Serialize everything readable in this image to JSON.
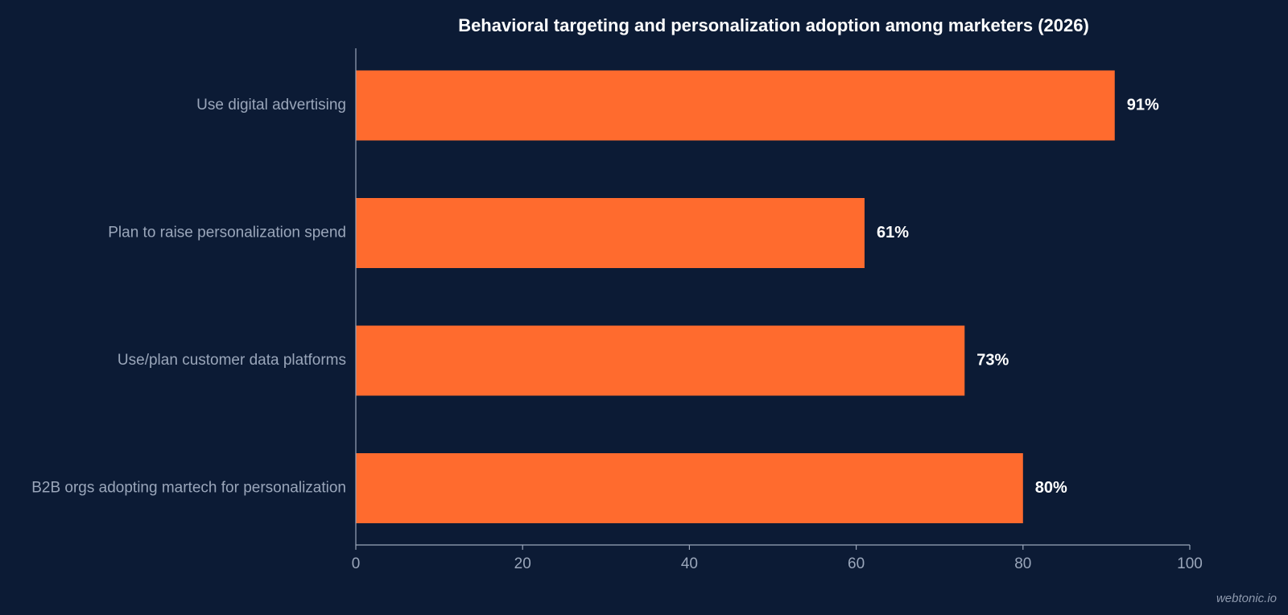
{
  "chart_data": {
    "type": "bar",
    "orientation": "horizontal",
    "title": "Behavioral targeting and personalization adoption among marketers (2026)",
    "xlabel": "",
    "ylabel": "",
    "categories": [
      "Use digital advertising",
      "Plan to raise personalization spend",
      "Use/plan customer data platforms",
      "B2B orgs adopting martech for personalization"
    ],
    "values": [
      91,
      61,
      73,
      80
    ],
    "data_labels": [
      "91%",
      "61%",
      "73%",
      "80%"
    ],
    "xlim": [
      0,
      100
    ],
    "x_ticks": [
      "0",
      "20",
      "40",
      "60",
      "80",
      "100"
    ],
    "grid": false,
    "legend": "none"
  },
  "colors": {
    "background": "#0c1b35",
    "bar": "#ff6b2e",
    "axis": "#9aa6ba",
    "category_text": "#9aa6ba",
    "value_text": "#ffffff",
    "title_text": "#ffffff"
  },
  "watermark": "webtonic.io"
}
